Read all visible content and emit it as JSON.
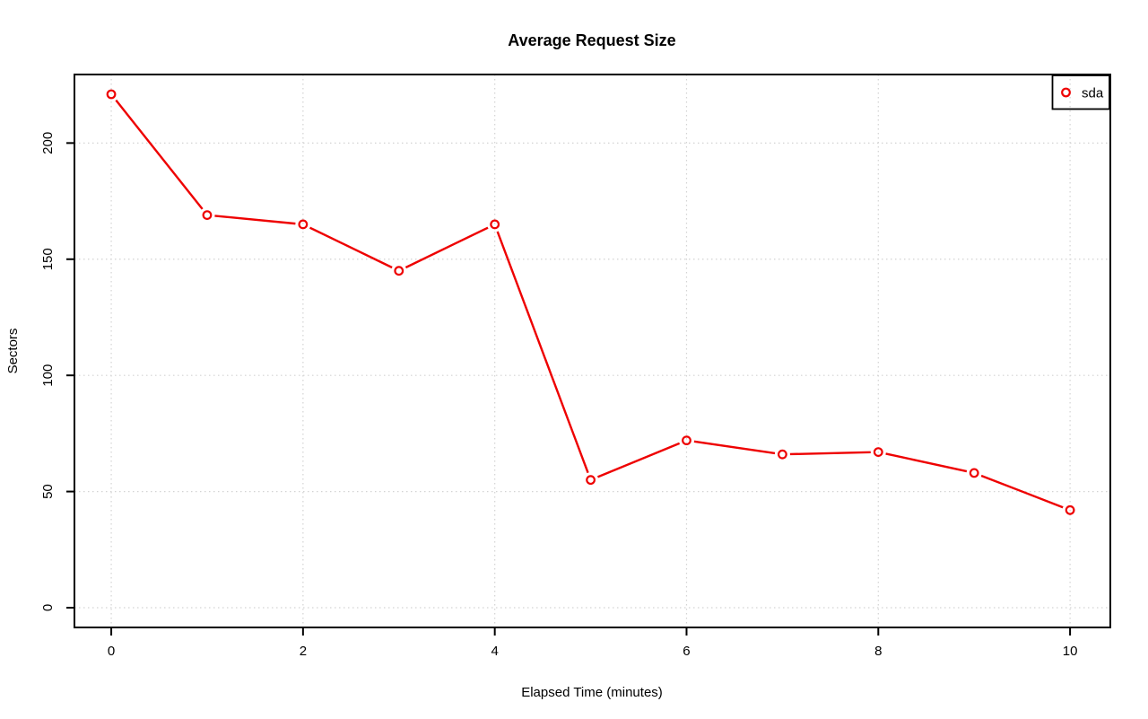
{
  "chart": {
    "title": "Average Request Size",
    "xlabel": "Elapsed Time (minutes)",
    "ylabel": "Sectors",
    "legend": {
      "label": "sda",
      "marker": "open-circle-icon"
    }
  },
  "chart_data": {
    "type": "line",
    "title": "Average Request Size",
    "xlabel": "Elapsed Time (minutes)",
    "ylabel": "Sectors",
    "series": [
      {
        "name": "sda",
        "color": "#ee0000",
        "marker": "open-circle",
        "line_style": "solid-with-point-gaps",
        "x": [
          0,
          1,
          2,
          3,
          4,
          5,
          6,
          7,
          8,
          9,
          10
        ],
        "values": [
          221,
          169,
          165,
          145,
          165,
          55,
          72,
          66,
          67,
          58,
          42
        ]
      }
    ],
    "x_ticks": [
      0,
      2,
      4,
      6,
      8,
      10
    ],
    "y_ticks": [
      0,
      50,
      100,
      150,
      200
    ],
    "xlim": [
      -0.384,
      10.42
    ],
    "ylim": [
      -8.5,
      229.5
    ],
    "grid": true,
    "grid_style": "dotted",
    "grid_color": "#d3d3d3",
    "axis_color": "#000000",
    "background_color": "#ffffff",
    "legend_position": "top-right",
    "legend_transparent": true
  }
}
